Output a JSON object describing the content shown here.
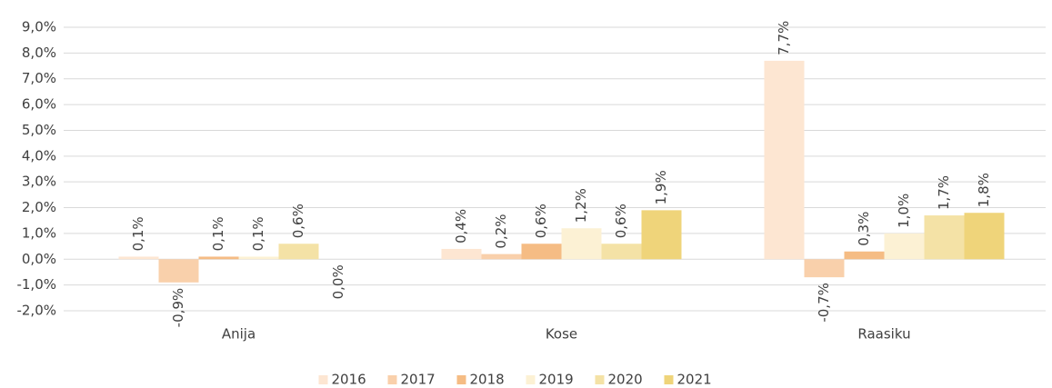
{
  "chart_data": {
    "type": "bar",
    "categories": [
      "Anija",
      "Kose",
      "Raasiku"
    ],
    "series": [
      {
        "name": "2016",
        "color": "#fde6d2",
        "values": [
          0.1,
          0.4,
          7.7
        ],
        "value_labels": [
          "0,1%",
          "0,4%",
          "7,7%"
        ]
      },
      {
        "name": "2017",
        "color": "#f9d0ab",
        "values": [
          -0.9,
          0.2,
          -0.7
        ],
        "value_labels": [
          "-0,9%",
          "0,2%",
          "-0,7%"
        ]
      },
      {
        "name": "2018",
        "color": "#f5bc84",
        "values": [
          0.1,
          0.6,
          0.3
        ],
        "value_labels": [
          "0,1%",
          "0,6%",
          "0,3%"
        ]
      },
      {
        "name": "2019",
        "color": "#fcf1d4",
        "values": [
          0.1,
          1.2,
          1.0
        ],
        "value_labels": [
          "0,1%",
          "1,2%",
          "1,0%"
        ]
      },
      {
        "name": "2020",
        "color": "#f4e2a6",
        "values": [
          0.6,
          0.6,
          1.7
        ],
        "value_labels": [
          "0,6%",
          "0,6%",
          "1,7%"
        ]
      },
      {
        "name": "2021",
        "color": "#efd47a",
        "values": [
          0.0,
          1.9,
          1.8
        ],
        "value_labels": [
          "0,0%",
          "1,9%",
          "1,8%"
        ]
      }
    ],
    "ylim": [
      -2,
      9
    ],
    "yticks": [
      {
        "value": -2,
        "label": "-2,0%"
      },
      {
        "value": -1,
        "label": "-1,0%"
      },
      {
        "value": 0,
        "label": "0,0%"
      },
      {
        "value": 1,
        "label": "1,0%"
      },
      {
        "value": 2,
        "label": "2,0%"
      },
      {
        "value": 3,
        "label": "3,0%"
      },
      {
        "value": 4,
        "label": "4,0%"
      },
      {
        "value": 5,
        "label": "5,0%"
      },
      {
        "value": 6,
        "label": "6,0%"
      },
      {
        "value": 7,
        "label": "7,0%"
      },
      {
        "value": 8,
        "label": "8,0%"
      },
      {
        "value": 9,
        "label": "9,0%"
      }
    ],
    "grid": true,
    "legend": "bottom"
  }
}
